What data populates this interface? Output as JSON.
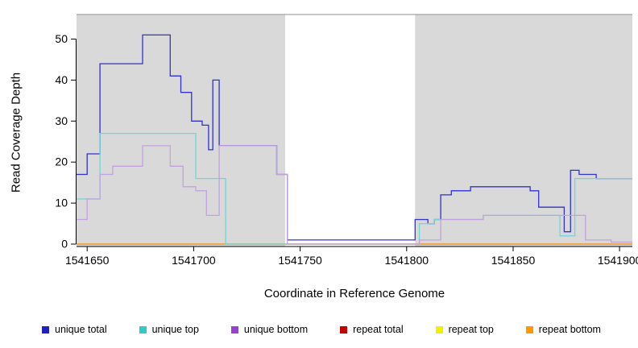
{
  "chart_data": {
    "type": "line",
    "style": "step",
    "title": "",
    "xlabel": "Coordinate in Reference Genome",
    "ylabel": "Read Coverage Depth",
    "xlim": [
      1541645,
      1541906
    ],
    "ylim": [
      0,
      56
    ],
    "x_ticks": [
      1541650,
      1541700,
      1541750,
      1541800,
      1541850,
      1541900
    ],
    "y_ticks": [
      0,
      10,
      20,
      30,
      40,
      50
    ],
    "grid": false,
    "legend_position": "bottom",
    "panel_color": "#d9d9d9",
    "panels": [
      {
        "from": 1541645,
        "to": 1541743
      },
      {
        "from": 1541804,
        "to": 1541906
      }
    ],
    "gap_region": {
      "from": 1541743,
      "to": 1541804,
      "color": "#ffffff"
    },
    "series": [
      {
        "name": "repeat total",
        "color": "#cc2222",
        "points": [
          [
            1541645,
            0
          ],
          [
            1541906,
            0
          ]
        ]
      },
      {
        "name": "repeat top",
        "color": "#e6e600",
        "points": [
          [
            1541645,
            0
          ],
          [
            1541906,
            0
          ]
        ]
      },
      {
        "name": "repeat bottom",
        "color": "#ff9d2e",
        "points": [
          [
            1541645,
            0
          ],
          [
            1541906,
            0
          ]
        ]
      },
      {
        "name": "unique total",
        "color": "#3131cf",
        "points": [
          [
            1541645,
            17
          ],
          [
            1541650,
            22
          ],
          [
            1541656,
            44
          ],
          [
            1541676,
            51
          ],
          [
            1541689,
            41
          ],
          [
            1541694,
            37
          ],
          [
            1541699,
            30
          ],
          [
            1541704,
            29
          ],
          [
            1541707,
            23
          ],
          [
            1541709,
            40
          ],
          [
            1541712,
            24
          ],
          [
            1541739,
            17
          ],
          [
            1541744,
            1
          ],
          [
            1541804,
            6
          ],
          [
            1541810,
            5
          ],
          [
            1541813,
            6
          ],
          [
            1541816,
            12
          ],
          [
            1541821,
            13
          ],
          [
            1541830,
            14
          ],
          [
            1541858,
            13
          ],
          [
            1541862,
            9
          ],
          [
            1541874,
            3
          ],
          [
            1541877,
            18
          ],
          [
            1541881,
            17
          ],
          [
            1541889,
            16
          ],
          [
            1541906,
            16
          ]
        ]
      },
      {
        "name": "unique top",
        "color": "#72d5d5",
        "points": [
          [
            1541645,
            11
          ],
          [
            1541656,
            27
          ],
          [
            1541701,
            16
          ],
          [
            1541715,
            0
          ],
          [
            1541806,
            5
          ],
          [
            1541813,
            6
          ],
          [
            1541836,
            7
          ],
          [
            1541872,
            2
          ],
          [
            1541879,
            16
          ],
          [
            1541906,
            16
          ]
        ]
      },
      {
        "name": "unique bottom",
        "color": "#c2a2de",
        "points": [
          [
            1541645,
            6
          ],
          [
            1541650,
            11
          ],
          [
            1541656,
            17
          ],
          [
            1541662,
            19
          ],
          [
            1541676,
            24
          ],
          [
            1541689,
            19
          ],
          [
            1541695,
            14
          ],
          [
            1541701,
            13
          ],
          [
            1541706,
            7
          ],
          [
            1541712,
            24
          ],
          [
            1541739,
            17
          ],
          [
            1541744,
            0
          ],
          [
            1541806,
            1
          ],
          [
            1541816,
            6
          ],
          [
            1541836,
            7
          ],
          [
            1541884,
            1
          ],
          [
            1541896,
            0.5
          ],
          [
            1541906,
            0.5
          ]
        ]
      }
    ],
    "legend": [
      {
        "label": "unique total",
        "color": "#2020c0"
      },
      {
        "label": "unique top",
        "color": "#30caca"
      },
      {
        "label": "unique bottom",
        "color": "#9b3fd0"
      },
      {
        "label": "repeat total",
        "color": "#c40000"
      },
      {
        "label": "repeat top",
        "color": "#f0f000"
      },
      {
        "label": "repeat bottom",
        "color": "#ff9900"
      }
    ]
  }
}
